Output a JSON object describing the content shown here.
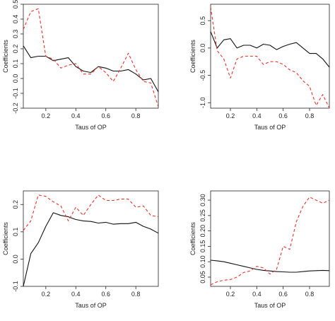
{
  "colors": {
    "series_black": "#111111",
    "series_red": "#e8332a",
    "axis": "#222222"
  },
  "chart_data": [
    {
      "type": "line",
      "xlabel": "Taus of OP",
      "ylabel": "Coefficients",
      "xlim": [
        0.05,
        0.95
      ],
      "ylim": [
        -0.2,
        0.5
      ],
      "xticks": [
        0.2,
        0.4,
        0.6,
        0.8
      ],
      "yticks": [
        -0.2,
        -0.1,
        0.0,
        0.1,
        0.2,
        0.3,
        0.4,
        0.5
      ],
      "series": [
        {
          "style": "solid",
          "color": "#111111",
          "x": [
            0.05,
            0.1,
            0.15,
            0.2,
            0.25,
            0.3,
            0.35,
            0.4,
            0.45,
            0.5,
            0.55,
            0.6,
            0.65,
            0.7,
            0.75,
            0.8,
            0.85,
            0.9,
            0.95
          ],
          "y": [
            0.22,
            0.14,
            0.15,
            0.15,
            0.12,
            0.13,
            0.14,
            0.08,
            0.05,
            0.04,
            0.08,
            0.07,
            0.05,
            0.05,
            0.06,
            0.03,
            -0.01,
            0.0,
            -0.09
          ]
        },
        {
          "style": "dashed",
          "color": "#e8332a",
          "x": [
            0.05,
            0.1,
            0.15,
            0.2,
            0.25,
            0.3,
            0.35,
            0.4,
            0.45,
            0.5,
            0.55,
            0.6,
            0.65,
            0.7,
            0.75,
            0.8,
            0.85,
            0.9,
            0.95
          ],
          "y": [
            0.33,
            0.45,
            0.47,
            0.15,
            0.13,
            0.07,
            0.09,
            0.1,
            0.03,
            0.03,
            0.08,
            0.04,
            -0.02,
            0.07,
            0.17,
            0.06,
            -0.02,
            -0.03,
            -0.19
          ]
        }
      ]
    },
    {
      "type": "line",
      "xlabel": "Taus of OP",
      "ylabel": "Coefficients",
      "xlim": [
        0.05,
        0.95
      ],
      "ylim": [
        -1.1,
        0.8
      ],
      "xticks": [
        0.2,
        0.4,
        0.6,
        0.8
      ],
      "yticks": [
        -1.0,
        -0.5,
        0.0,
        0.5
      ],
      "series": [
        {
          "style": "solid",
          "color": "#111111",
          "x": [
            0.05,
            0.1,
            0.15,
            0.2,
            0.25,
            0.3,
            0.35,
            0.4,
            0.45,
            0.5,
            0.55,
            0.6,
            0.65,
            0.7,
            0.75,
            0.8,
            0.85,
            0.9,
            0.95
          ],
          "y": [
            0.3,
            0.0,
            0.15,
            0.17,
            0.0,
            0.05,
            0.05,
            0.0,
            0.07,
            0.05,
            -0.03,
            0.03,
            0.07,
            0.1,
            0.0,
            -0.1,
            -0.1,
            -0.2,
            -0.35
          ]
        },
        {
          "style": "dashed",
          "color": "#e8332a",
          "x": [
            0.05,
            0.1,
            0.15,
            0.2,
            0.25,
            0.3,
            0.35,
            0.4,
            0.45,
            0.5,
            0.55,
            0.6,
            0.65,
            0.7,
            0.75,
            0.8,
            0.85,
            0.9,
            0.95
          ],
          "y": [
            0.75,
            -0.05,
            -0.2,
            -0.55,
            -0.2,
            -0.15,
            -0.15,
            -0.15,
            -0.3,
            -0.25,
            -0.25,
            -0.3,
            -0.4,
            -0.45,
            -0.6,
            -0.7,
            -1.05,
            -0.85,
            -1.1
          ]
        }
      ]
    },
    {
      "type": "line",
      "xlabel": "Taus of OP",
      "ylabel": "Coefficients",
      "xlim": [
        0.05,
        0.95
      ],
      "ylim": [
        -0.1,
        0.25
      ],
      "xticks": [
        0.2,
        0.4,
        0.6,
        0.8
      ],
      "yticks": [
        -0.1,
        0.0,
        0.1,
        0.2
      ],
      "series": [
        {
          "style": "solid",
          "color": "#111111",
          "x": [
            0.05,
            0.1,
            0.15,
            0.2,
            0.25,
            0.3,
            0.35,
            0.4,
            0.45,
            0.5,
            0.55,
            0.6,
            0.65,
            0.7,
            0.75,
            0.8,
            0.85,
            0.9,
            0.95
          ],
          "y": [
            -0.1,
            0.02,
            0.06,
            0.12,
            0.17,
            0.16,
            0.155,
            0.145,
            0.14,
            0.138,
            0.132,
            0.135,
            0.128,
            0.13,
            0.13,
            0.135,
            0.12,
            0.11,
            0.095
          ]
        },
        {
          "style": "dashed",
          "color": "#e8332a",
          "x": [
            0.05,
            0.1,
            0.15,
            0.2,
            0.25,
            0.3,
            0.35,
            0.4,
            0.45,
            0.5,
            0.55,
            0.6,
            0.65,
            0.7,
            0.75,
            0.8,
            0.85,
            0.9,
            0.95
          ],
          "y": [
            0.105,
            0.14,
            0.235,
            0.23,
            0.21,
            0.195,
            0.14,
            0.19,
            0.16,
            0.2,
            0.235,
            0.215,
            0.215,
            0.22,
            0.22,
            0.19,
            0.195,
            0.16,
            0.155
          ]
        }
      ]
    },
    {
      "type": "line",
      "xlabel": "Taus of OP",
      "ylabel": "Coefficients",
      "xlim": [
        0.05,
        0.95
      ],
      "ylim": [
        0.02,
        0.33
      ],
      "xticks": [
        0.2,
        0.4,
        0.6,
        0.8
      ],
      "yticks": [
        0.05,
        0.1,
        0.15,
        0.2,
        0.25,
        0.3
      ],
      "series": [
        {
          "style": "solid",
          "color": "#111111",
          "x": [
            0.05,
            0.1,
            0.15,
            0.2,
            0.25,
            0.3,
            0.35,
            0.4,
            0.45,
            0.5,
            0.55,
            0.6,
            0.65,
            0.7,
            0.75,
            0.8,
            0.85,
            0.9,
            0.95
          ],
          "y": [
            0.105,
            0.103,
            0.1,
            0.095,
            0.09,
            0.085,
            0.08,
            0.075,
            0.072,
            0.07,
            0.068,
            0.067,
            0.066,
            0.066,
            0.068,
            0.07,
            0.071,
            0.072,
            0.071
          ]
        },
        {
          "style": "dashed",
          "color": "#e8332a",
          "x": [
            0.05,
            0.1,
            0.15,
            0.2,
            0.25,
            0.3,
            0.35,
            0.4,
            0.45,
            0.5,
            0.55,
            0.6,
            0.65,
            0.7,
            0.75,
            0.8,
            0.85,
            0.9,
            0.95
          ],
          "y": [
            0.025,
            0.035,
            0.04,
            0.042,
            0.05,
            0.065,
            0.07,
            0.085,
            0.08,
            0.06,
            0.075,
            0.15,
            0.14,
            0.23,
            0.28,
            0.31,
            0.3,
            0.29,
            0.3
          ]
        }
      ]
    }
  ]
}
